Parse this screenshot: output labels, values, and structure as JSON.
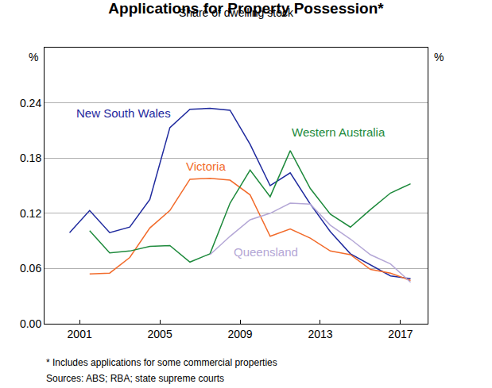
{
  "chart_data": {
    "type": "line",
    "title": "Applications for Property Possession*",
    "subtitle": "Share of dwelling stock",
    "ylabel": "%",
    "notes": [
      "* Includes applications for some commercial properties",
      "Sources: ABS; RBA; state supreme courts"
    ],
    "x": [
      2000.5,
      2001.5,
      2002.5,
      2003.5,
      2004.5,
      2005.5,
      2006.5,
      2007.5,
      2008.5,
      2009.5,
      2010.5,
      2011.5,
      2012.5,
      2013.5,
      2014.5,
      2015.5,
      2016.5,
      2017.5
    ],
    "series": [
      {
        "name": "New South Wales",
        "color": "#1f2a9e",
        "values": [
          0.099,
          0.123,
          0.099,
          0.105,
          0.135,
          0.213,
          0.233,
          0.234,
          0.232,
          0.195,
          0.15,
          0.164,
          0.13,
          0.1,
          0.076,
          0.064,
          0.052,
          0.049
        ]
      },
      {
        "name": "Victoria",
        "color": "#f26b2b",
        "values": [
          null,
          0.054,
          0.055,
          0.072,
          0.104,
          0.123,
          0.157,
          0.158,
          0.156,
          0.14,
          0.095,
          0.103,
          0.093,
          0.079,
          0.075,
          0.059,
          0.055,
          0.047
        ]
      },
      {
        "name": "Western Australia",
        "color": "#1e8a3c",
        "values": [
          null,
          0.101,
          0.077,
          0.079,
          0.084,
          0.085,
          0.067,
          0.076,
          0.131,
          0.167,
          0.138,
          0.188,
          0.147,
          0.119,
          0.105,
          0.124,
          0.142,
          0.152
        ]
      },
      {
        "name": "Queensland",
        "color": "#b4a7d6",
        "values": [
          null,
          null,
          null,
          null,
          null,
          null,
          null,
          0.075,
          0.095,
          0.113,
          0.12,
          0.131,
          0.13,
          0.107,
          0.092,
          0.075,
          0.065,
          0.045
        ]
      }
    ],
    "annotations": [
      {
        "series": "New South Wales",
        "x": 2003.2,
        "y": 0.229
      },
      {
        "series": "Victoria",
        "x": 2007.3,
        "y": 0.171
      },
      {
        "series": "Western Australia",
        "x": 2013.9,
        "y": 0.208
      },
      {
        "series": "Queensland",
        "x": 2010.3,
        "y": 0.078
      }
    ],
    "xlim": [
      1999.25,
      2018.35
    ],
    "xticks": [
      2001,
      2005,
      2009,
      2013,
      2017
    ],
    "ylim": [
      0,
      0.3
    ],
    "yticks": [
      {
        "value": 0,
        "label": "0.00"
      },
      {
        "value": 0.06,
        "label": "0.06"
      },
      {
        "value": 0.12,
        "label": "0.12"
      },
      {
        "value": 0.18,
        "label": "0.18"
      },
      {
        "value": 0.24,
        "label": "0.24"
      }
    ],
    "grid": true
  }
}
